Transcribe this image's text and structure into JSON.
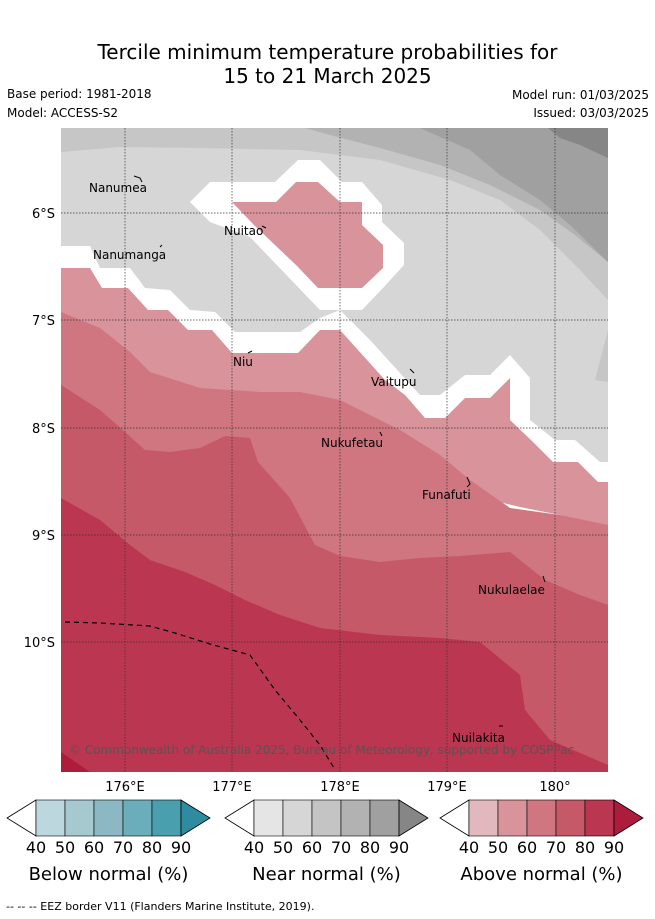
{
  "title_line1": "Tercile minimum temperature probabilities for",
  "title_line2": "15 to 21 March 2025",
  "base_period": "Base period: 1981-2018",
  "model": "Model: ACCESS-S2",
  "model_run": "Model run: 01/03/2025",
  "issued": "Issued: 03/03/2025",
  "lat_ticks": [
    "6°S",
    "7°S",
    "8°S",
    "9°S",
    "10°S"
  ],
  "lon_ticks": [
    "176°E",
    "177°E",
    "178°E",
    "179°E",
    "180°"
  ],
  "islands": [
    "Nanumea",
    "Nanumanga",
    "Nuitao",
    "Niu",
    "Vaitupu",
    "Nukufetau",
    "Funafuti",
    "Nukulaelae",
    "Nuilakita"
  ],
  "copyright": "© Commonwealth of Australia 2025, Bureau of Meteorology, supported by COSPPac",
  "colorbars": [
    {
      "title": "Below normal (%)",
      "ticks": [
        "40",
        "50",
        "60",
        "70",
        "80",
        "90"
      ],
      "colors": [
        "#bdd7de",
        "#a6c9cf",
        "#8bb8c3",
        "#6aaebc",
        "#4a9fae",
        "#2e8ba0"
      ]
    },
    {
      "title": "Near normal (%)",
      "ticks": [
        "40",
        "50",
        "60",
        "70",
        "80",
        "90"
      ],
      "colors": [
        "#e5e5e5",
        "#d6d6d6",
        "#c4c4c4",
        "#b2b2b2",
        "#a0a0a0",
        "#868686"
      ]
    },
    {
      "title": "Above normal (%)",
      "ticks": [
        "40",
        "50",
        "60",
        "70",
        "80",
        "90"
      ],
      "colors": [
        "#e1b8be",
        "#d8939b",
        "#cf7680",
        "#c55968",
        "#bb3650",
        "#ae1c3c"
      ]
    }
  ],
  "eez_legend": "-- -- -- EEZ border V11 (Flanders Marine Institute, 2019)."
}
